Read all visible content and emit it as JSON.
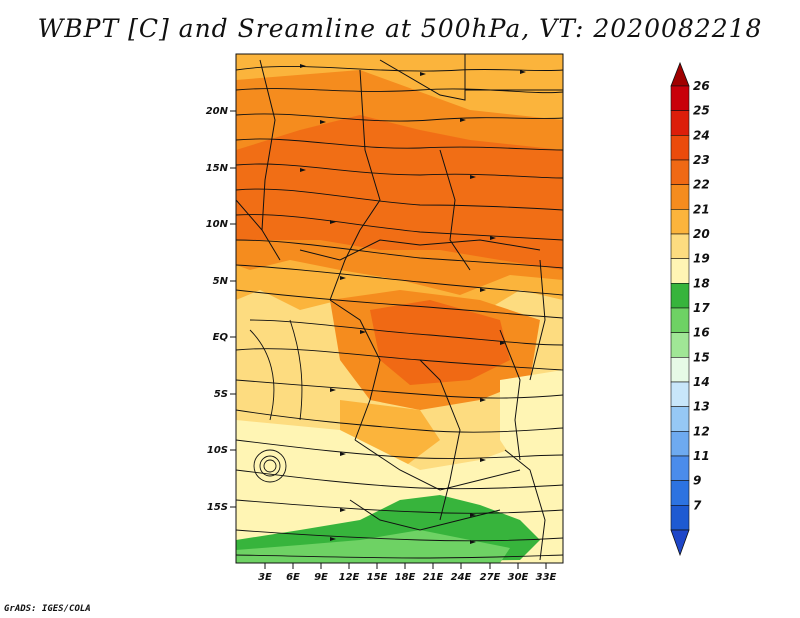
{
  "title": "WBPT [C] and Sreamline at 500hPa, VT: 2020082218",
  "credit": "GrADS: IGES/COLA",
  "map": {
    "lat_labels": [
      "20N",
      "15N",
      "10N",
      "5N",
      "EQ",
      "5S",
      "10S",
      "15S"
    ],
    "lon_labels": [
      "3E",
      "6E",
      "9E",
      "12E",
      "15E",
      "18E",
      "21E",
      "24E",
      "27E",
      "30E",
      "33E"
    ],
    "field": "wet-bulb potential temperature",
    "overlay": "streamlines"
  },
  "colorbar": {
    "levels": [
      "26",
      "25",
      "24",
      "23",
      "22",
      "21",
      "20",
      "19",
      "18",
      "17",
      "16",
      "15",
      "14",
      "13",
      "12",
      "11",
      "9",
      "7"
    ],
    "colors": [
      "#c8000a",
      "#dc1e0a",
      "#eb4b0c",
      "#f06914",
      "#f58c1e",
      "#fbb43c",
      "#fddc80",
      "#fff5b4",
      "#37b43c",
      "#6ed264",
      "#a0e696",
      "#e6fae6",
      "#c8e6fa",
      "#96c8f5",
      "#6eaaf0",
      "#4b8ceb",
      "#2d73e1",
      "#1e5ad2"
    ],
    "top_arrow_color": "#a00000",
    "bottom_arrow_color": "#1e46c8"
  }
}
